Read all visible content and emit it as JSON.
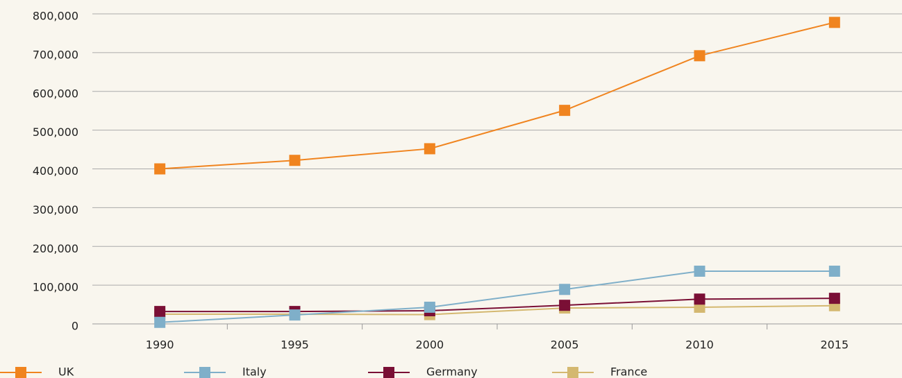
{
  "chart_data": {
    "type": "line",
    "categories": [
      "1990",
      "1995",
      "2000",
      "2005",
      "2010",
      "2015"
    ],
    "series": [
      {
        "name": "UK",
        "color": "#f0841f",
        "values": [
          400000,
          422000,
          452000,
          551000,
          692000,
          778000
        ]
      },
      {
        "name": "Italy",
        "color": "#7fafc9",
        "values": [
          4000,
          23000,
          43000,
          89000,
          136000,
          136000
        ]
      },
      {
        "name": "Germany",
        "color": "#7a0f35",
        "values": [
          32000,
          32000,
          34000,
          48000,
          64000,
          66000
        ]
      },
      {
        "name": "France",
        "color": "#d4b870",
        "values": [
          25000,
          25000,
          24000,
          41000,
          43000,
          47000
        ]
      }
    ],
    "ylim": [
      0,
      800000
    ],
    "yticks": [
      0,
      {
        "value": 100000,
        "label": "100,000"
      },
      {
        "value": 200000,
        "label": "200,000"
      },
      {
        "value": 300000,
        "label": "300,000"
      },
      {
        "value": 400000,
        "label": "400,000"
      },
      {
        "value": 500000,
        "label": "500,000"
      },
      {
        "value": 600000,
        "label": "600,000"
      },
      {
        "value": 700000,
        "label": "700,000"
      },
      {
        "value": 800000,
        "label": "800,000"
      }
    ],
    "grid": true,
    "legend": "bottom"
  }
}
